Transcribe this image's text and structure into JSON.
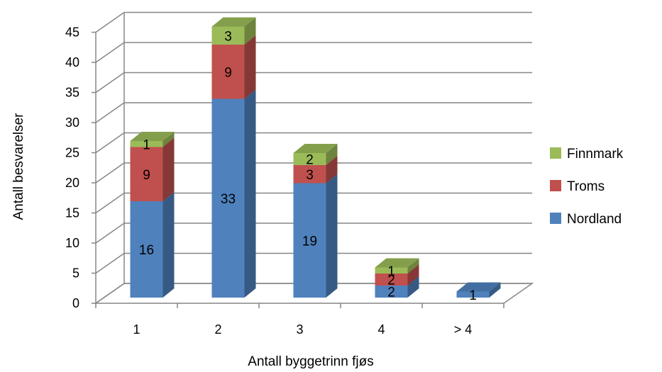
{
  "chart_data": {
    "type": "bar",
    "stacked": true,
    "style": "3d",
    "categories": [
      "1",
      "2",
      "3",
      "4",
      "> 4"
    ],
    "series": [
      {
        "name": "Nordland",
        "color": "#4F81BD",
        "values": [
          16,
          33,
          19,
          2,
          1
        ]
      },
      {
        "name": "Troms",
        "color": "#C0504D",
        "values": [
          9,
          9,
          3,
          2,
          0
        ]
      },
      {
        "name": "Finnmark",
        "color": "#9BBB59",
        "values": [
          1,
          3,
          2,
          1,
          0
        ]
      }
    ],
    "xlabel": "Antall byggetrinn fjøs",
    "ylabel": "Antall besvarelser",
    "ylim": [
      0,
      45
    ],
    "yticks": [
      "0",
      "5",
      "10",
      "15",
      "20",
      "25",
      "30",
      "35",
      "40",
      "45"
    ],
    "grid": true,
    "legend_position": "right"
  }
}
